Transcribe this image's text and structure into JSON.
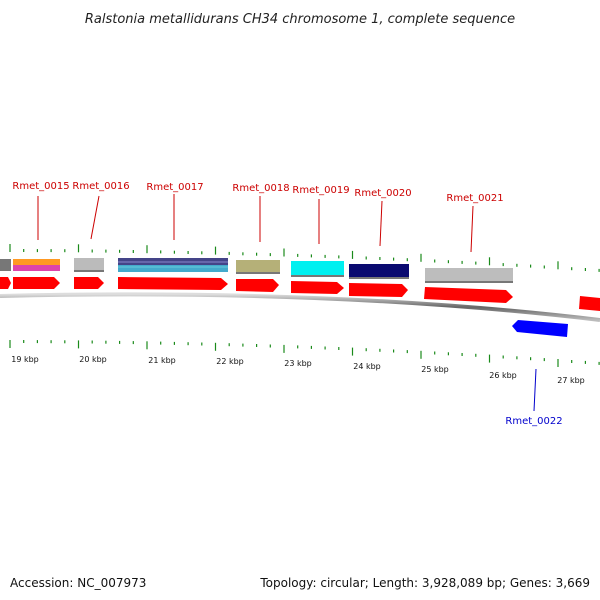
{
  "title": "Ralstonia metallidurans CH34 chromosome 1, complete sequence",
  "footer": {
    "accession": "Accession: NC_007973",
    "summary": "Topology: circular; Length: 3,928,089 bp; Genes: 3,669"
  },
  "colors": {
    "forward_gene": "#ff0000",
    "reverse_gene": "#0000ff",
    "forward_label": "#cc0000",
    "reverse_label": "#0000cc",
    "tick": "#1a8a1a",
    "backbone": "#777777"
  },
  "forward_genes": [
    {
      "name": "Rmet_0015",
      "category_colors": [
        "#dd44aa",
        "#ff9922"
      ]
    },
    {
      "name": "Rmet_0016",
      "category_colors": [
        "#bbbbbb"
      ]
    },
    {
      "name": "Rmet_0017",
      "category_colors": [
        "#44aacc",
        "#444488"
      ]
    },
    {
      "name": "Rmet_0018",
      "category_colors": [
        "#b5b078"
      ]
    },
    {
      "name": "Rmet_0019",
      "category_colors": [
        "#00f0f0"
      ]
    },
    {
      "name": "Rmet_0020",
      "category_colors": [
        "#0a0a70"
      ]
    },
    {
      "name": "Rmet_0021",
      "category_colors": [
        "#bdbdbd"
      ]
    }
  ],
  "reverse_genes": [
    {
      "name": "Rmet_0022"
    }
  ],
  "kbp_labels": [
    "19 kbp",
    "20 kbp",
    "21 kbp",
    "22 kbp",
    "23 kbp",
    "24 kbp",
    "25 kbp",
    "26 kbp",
    "27 kbp"
  ]
}
